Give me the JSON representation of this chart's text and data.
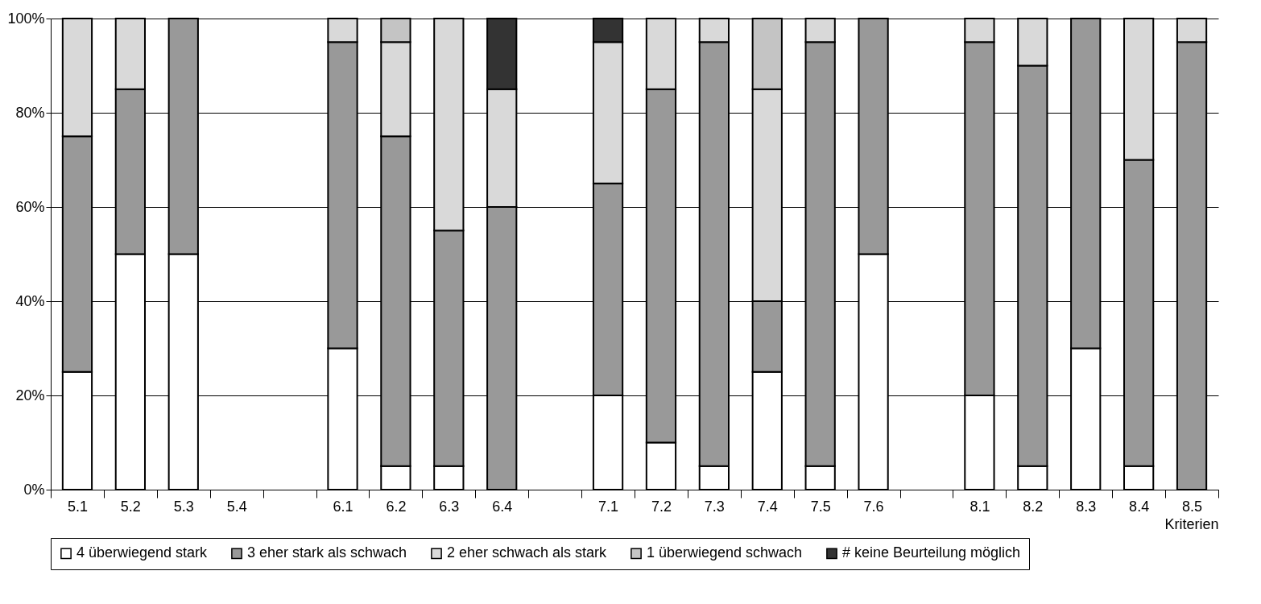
{
  "chart_data": {
    "type": "bar",
    "stacked": true,
    "xlabel": "Kriterien",
    "categories": [
      "5.1",
      "5.2",
      "5.3",
      "5.4",
      null,
      "6.1",
      "6.2",
      "6.3",
      "6.4",
      null,
      "7.1",
      "7.2",
      "7.3",
      "7.4",
      "7.5",
      "7.6",
      null,
      "8.1",
      "8.2",
      "8.3",
      "8.4",
      "8.5"
    ],
    "series": [
      {
        "name": "4 überwiegend stark",
        "color": "#ffffff",
        "values": [
          25,
          50,
          50,
          null,
          null,
          30,
          5,
          5,
          null,
          null,
          20,
          10,
          5,
          25,
          5,
          50,
          null,
          20,
          5,
          30,
          5,
          null
        ]
      },
      {
        "name": "3 eher stark als schwach",
        "color": "#999999",
        "values": [
          50,
          35,
          50,
          null,
          null,
          65,
          70,
          50,
          60,
          null,
          45,
          75,
          90,
          15,
          90,
          50,
          null,
          75,
          85,
          70,
          65,
          95
        ]
      },
      {
        "name": "2 eher schwach als stark",
        "color": "#d9d9d9",
        "values": [
          25,
          15,
          null,
          null,
          null,
          5,
          20,
          45,
          25,
          null,
          30,
          15,
          5,
          45,
          5,
          null,
          null,
          5,
          10,
          null,
          30,
          5
        ]
      },
      {
        "name": "1 überwiegend schwach",
        "color": "#c4c4c4",
        "values": [
          null,
          null,
          null,
          null,
          null,
          null,
          5,
          null,
          null,
          null,
          null,
          null,
          null,
          15,
          null,
          null,
          null,
          null,
          null,
          null,
          null,
          null
        ]
      },
      {
        "name": "# keine Beurteilung möglich",
        "color": "#333333",
        "values": [
          null,
          null,
          null,
          null,
          null,
          null,
          null,
          null,
          15,
          null,
          5,
          null,
          null,
          null,
          null,
          null,
          null,
          null,
          null,
          null,
          null,
          null
        ]
      }
    ],
    "ylim": [
      0,
      100
    ],
    "yticks": [
      {
        "value": 0,
        "label": "0%"
      },
      {
        "value": 20,
        "label": "20%"
      },
      {
        "value": 40,
        "label": "40%"
      },
      {
        "value": 60,
        "label": "60%"
      },
      {
        "value": 80,
        "label": "80%"
      },
      {
        "value": 100,
        "label": "100%"
      }
    ],
    "grid": "y",
    "legend": "bottom"
  }
}
